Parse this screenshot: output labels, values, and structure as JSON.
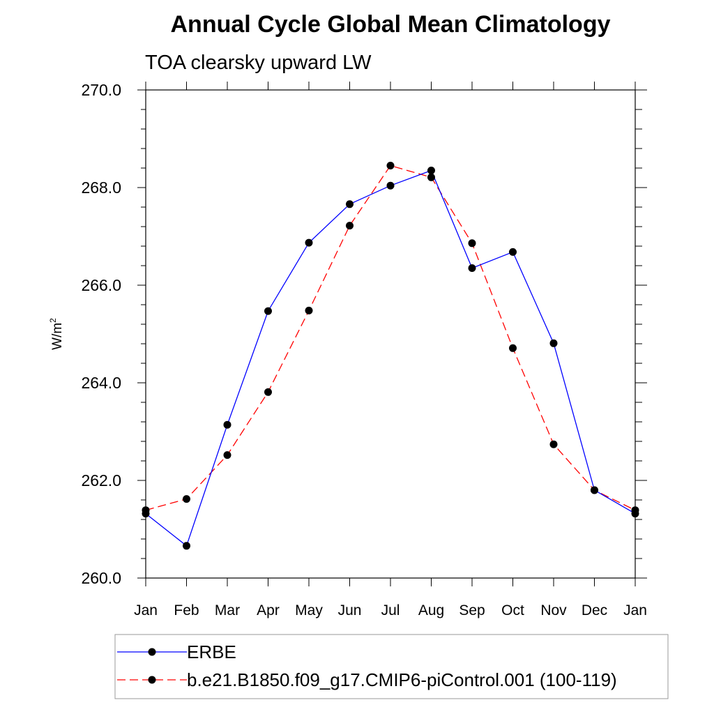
{
  "chart_data": {
    "type": "line",
    "title": "Annual Cycle Global Mean Climatology",
    "subtitle": "TOA clearsky upward LW",
    "ylabel": "W/m",
    "ylabel_superscript": "2",
    "xlabel": "",
    "categories": [
      "Jan",
      "Feb",
      "Mar",
      "Apr",
      "May",
      "Jun",
      "Jul",
      "Aug",
      "Sep",
      "Oct",
      "Nov",
      "Dec",
      "Jan"
    ],
    "ylim": [
      260.0,
      270.0
    ],
    "yticks": [
      "260.0",
      "262.0",
      "264.0",
      "266.0",
      "268.0",
      "270.0"
    ],
    "grid": false,
    "legend_position": "bottom",
    "series": [
      {
        "name": "ERBE",
        "color": "#0000ff",
        "line_style": "solid",
        "marker": "filled-circle",
        "values": [
          261.32,
          260.66,
          263.14,
          265.47,
          266.87,
          267.66,
          268.04,
          268.35,
          266.35,
          266.68,
          264.81,
          261.8,
          261.32
        ]
      },
      {
        "name": "b.e21.B1850.f09_g17.CMIP6-piControl.001 (100-119)",
        "color": "#ff0000",
        "line_style": "dashed",
        "marker": "filled-circle",
        "values": [
          261.39,
          261.62,
          262.52,
          263.81,
          265.48,
          267.22,
          268.45,
          268.21,
          266.86,
          264.71,
          262.74,
          261.8,
          261.39
        ]
      }
    ]
  }
}
